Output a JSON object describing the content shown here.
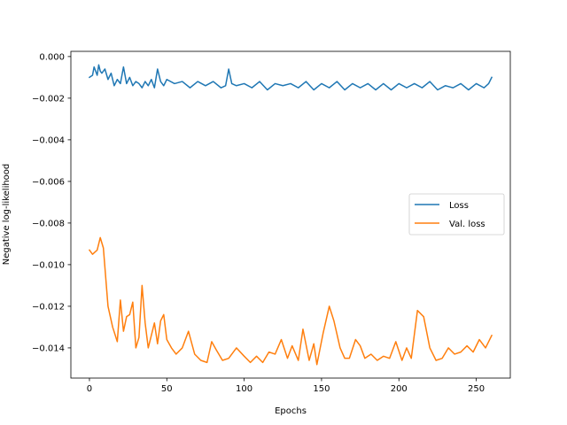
{
  "chart_data": {
    "type": "line",
    "xlabel": "Epochs",
    "ylabel": "Negative log-likelihood",
    "xlim": [
      -12,
      272
    ],
    "ylim": [
      -0.01545,
      0.00025
    ],
    "xticks": [
      0,
      50,
      100,
      150,
      200,
      250
    ],
    "xtick_labels": [
      "0",
      "50",
      "100",
      "150",
      "200",
      "250"
    ],
    "yticks": [
      0.0,
      -0.002,
      -0.004,
      -0.006,
      -0.008,
      -0.01,
      -0.012,
      -0.014
    ],
    "ytick_labels": [
      "0.000",
      "−0.002",
      "−0.004",
      "−0.006",
      "−0.008",
      "−0.010",
      "−0.012",
      "−0.014"
    ],
    "grid": false,
    "legend_position": "center-right",
    "series": [
      {
        "name": "Loss",
        "color": "#1f77b4",
        "x": [
          0,
          2,
          3,
          5,
          6,
          7,
          8,
          10,
          12,
          14,
          16,
          18,
          20,
          22,
          24,
          26,
          28,
          30,
          32,
          34,
          36,
          38,
          40,
          42,
          44,
          46,
          48,
          50,
          55,
          60,
          65,
          70,
          75,
          80,
          85,
          88,
          90,
          92,
          95,
          100,
          105,
          110,
          115,
          120,
          125,
          130,
          135,
          140,
          145,
          150,
          155,
          160,
          165,
          170,
          175,
          180,
          185,
          190,
          195,
          200,
          205,
          210,
          215,
          220,
          225,
          230,
          235,
          240,
          245,
          250,
          255,
          258,
          260
        ],
        "values": [
          -0.001,
          -0.0009,
          -0.0005,
          -0.0009,
          -0.0004,
          -0.0007,
          -0.0008,
          -0.0006,
          -0.0011,
          -0.0008,
          -0.0014,
          -0.0011,
          -0.0013,
          -0.0005,
          -0.0013,
          -0.001,
          -0.0014,
          -0.0012,
          -0.0013,
          -0.0015,
          -0.0012,
          -0.0014,
          -0.0011,
          -0.0015,
          -0.0006,
          -0.0012,
          -0.0014,
          -0.0011,
          -0.0013,
          -0.0012,
          -0.0015,
          -0.0012,
          -0.0014,
          -0.0012,
          -0.0015,
          -0.0014,
          -0.0006,
          -0.0013,
          -0.0014,
          -0.0013,
          -0.0015,
          -0.0012,
          -0.0016,
          -0.0013,
          -0.0014,
          -0.0013,
          -0.0015,
          -0.0012,
          -0.0016,
          -0.0013,
          -0.0015,
          -0.0012,
          -0.0016,
          -0.0013,
          -0.0015,
          -0.0013,
          -0.0016,
          -0.0013,
          -0.0016,
          -0.0013,
          -0.0015,
          -0.0013,
          -0.0015,
          -0.0012,
          -0.0016,
          -0.0014,
          -0.0015,
          -0.0013,
          -0.0016,
          -0.0013,
          -0.0015,
          -0.0013,
          -0.001
        ]
      },
      {
        "name": "Val. loss",
        "color": "#ff7f0e",
        "x": [
          0,
          2,
          5,
          7,
          9,
          12,
          15,
          18,
          20,
          22,
          24,
          26,
          28,
          30,
          32,
          34,
          36,
          38,
          40,
          42,
          44,
          46,
          48,
          50,
          53,
          56,
          60,
          64,
          68,
          72,
          76,
          79,
          82,
          86,
          90,
          95,
          100,
          104,
          108,
          112,
          116,
          120,
          124,
          128,
          131,
          135,
          138,
          142,
          145,
          147,
          151,
          155,
          158,
          162,
          165,
          168,
          172,
          175,
          178,
          182,
          186,
          190,
          194,
          198,
          202,
          205,
          208,
          212,
          216,
          220,
          224,
          228,
          232,
          236,
          240,
          244,
          248,
          252,
          256,
          260
        ],
        "values": [
          -0.0093,
          -0.0095,
          -0.0093,
          -0.0087,
          -0.0092,
          -0.012,
          -0.013,
          -0.0137,
          -0.0117,
          -0.0132,
          -0.0125,
          -0.0124,
          -0.0118,
          -0.014,
          -0.0135,
          -0.011,
          -0.0128,
          -0.014,
          -0.0134,
          -0.0128,
          -0.0138,
          -0.0127,
          -0.0124,
          -0.0136,
          -0.014,
          -0.0143,
          -0.014,
          -0.0132,
          -0.0143,
          -0.0146,
          -0.0147,
          -0.0137,
          -0.0141,
          -0.0146,
          -0.0145,
          -0.014,
          -0.0144,
          -0.0147,
          -0.0144,
          -0.0147,
          -0.0142,
          -0.0143,
          -0.0136,
          -0.0145,
          -0.0139,
          -0.0146,
          -0.0131,
          -0.0146,
          -0.0138,
          -0.0148,
          -0.0133,
          -0.012,
          -0.0127,
          -0.014,
          -0.0145,
          -0.0145,
          -0.0136,
          -0.0139,
          -0.0145,
          -0.0143,
          -0.0146,
          -0.0144,
          -0.0145,
          -0.0137,
          -0.0146,
          -0.014,
          -0.0145,
          -0.0122,
          -0.0125,
          -0.014,
          -0.0146,
          -0.0145,
          -0.014,
          -0.0143,
          -0.0142,
          -0.0139,
          -0.0142,
          -0.0136,
          -0.014,
          -0.0134
        ]
      }
    ]
  }
}
